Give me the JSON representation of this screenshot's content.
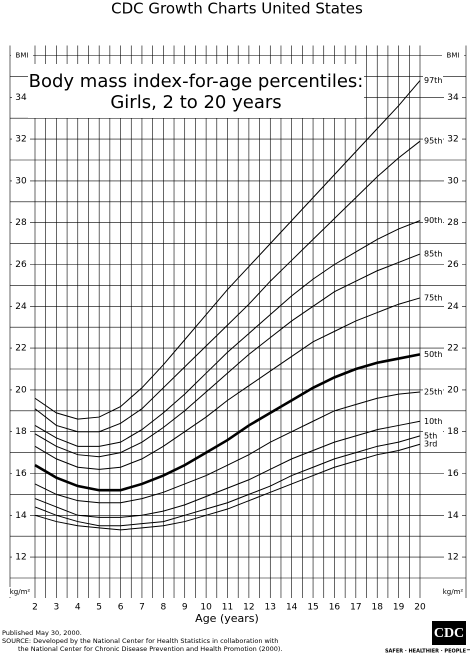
{
  "chart_data": {
    "type": "line",
    "title": "CDC Growth Charts United States",
    "chart_heading": [
      "Body mass index-for-age percentiles:",
      "Girls, 2 to 20 years"
    ],
    "x_label": "Age (years)",
    "y_label_top": "BMI",
    "y_label_bottom": "kg/m²",
    "x": [
      2,
      3,
      4,
      5,
      6,
      7,
      8,
      9,
      10,
      11,
      12,
      13,
      14,
      15,
      16,
      17,
      18,
      19,
      20
    ],
    "xlim": [
      2,
      20
    ],
    "xticks": [
      2,
      3,
      4,
      5,
      6,
      7,
      8,
      9,
      10,
      11,
      12,
      13,
      14,
      15,
      16,
      17,
      18,
      19,
      20
    ],
    "xgrid": [
      2,
      2.5,
      3,
      3.5,
      4,
      4.5,
      5,
      5.5,
      6,
      6.5,
      7,
      7.5,
      8,
      8.5,
      9,
      9.5,
      10,
      10.5,
      11,
      11.5,
      12,
      12.5,
      13,
      13.5,
      14,
      14.5,
      15,
      15.5,
      16,
      16.5,
      17,
      17.5,
      18,
      18.5,
      19,
      19.5,
      20
    ],
    "ylim": [
      11,
      36
    ],
    "yticks": [
      12,
      14,
      16,
      18,
      20,
      22,
      24,
      26,
      28,
      30,
      32,
      34
    ],
    "ygrid": [
      11,
      12,
      13,
      14,
      15,
      16,
      17,
      18,
      19,
      20,
      21,
      22,
      23,
      24,
      25,
      26,
      27,
      28,
      29,
      30,
      31,
      32,
      33,
      34,
      35,
      36
    ],
    "grid": true,
    "series": [
      {
        "name": "97th",
        "color": "#000000",
        "line_width": 1,
        "values": [
          19.6,
          18.9,
          18.6,
          18.7,
          19.2,
          20.1,
          21.2,
          22.4,
          23.6,
          24.8,
          25.9,
          27.0,
          28.1,
          29.2,
          30.3,
          31.4,
          32.5,
          33.6,
          34.8
        ]
      },
      {
        "name": "95th",
        "color": "#000000",
        "line_width": 1,
        "values": [
          19.1,
          18.3,
          18.0,
          18.0,
          18.4,
          19.1,
          20.1,
          21.1,
          22.1,
          23.1,
          24.1,
          25.2,
          26.2,
          27.2,
          28.2,
          29.2,
          30.2,
          31.1,
          31.9
        ]
      },
      {
        "name": "90th",
        "color": "#000000",
        "line_width": 1,
        "values": [
          18.3,
          17.7,
          17.3,
          17.3,
          17.5,
          18.1,
          18.9,
          19.8,
          20.8,
          21.8,
          22.7,
          23.6,
          24.5,
          25.3,
          26.0,
          26.6,
          27.2,
          27.7,
          28.1
        ]
      },
      {
        "name": "85th",
        "color": "#000000",
        "line_width": 1,
        "values": [
          17.9,
          17.3,
          16.9,
          16.8,
          17.0,
          17.5,
          18.2,
          19.0,
          19.9,
          20.8,
          21.7,
          22.5,
          23.3,
          24.0,
          24.7,
          25.2,
          25.7,
          26.1,
          26.5
        ]
      },
      {
        "name": "75th",
        "color": "#000000",
        "line_width": 1,
        "values": [
          17.3,
          16.7,
          16.3,
          16.2,
          16.3,
          16.7,
          17.3,
          18.0,
          18.7,
          19.5,
          20.2,
          20.9,
          21.6,
          22.3,
          22.8,
          23.3,
          23.7,
          24.1,
          24.4
        ]
      },
      {
        "name": "50th",
        "color": "#000000",
        "line_width": 2.6,
        "values": [
          16.4,
          15.8,
          15.4,
          15.2,
          15.2,
          15.5,
          15.9,
          16.4,
          17.0,
          17.6,
          18.3,
          18.9,
          19.5,
          20.1,
          20.6,
          21.0,
          21.3,
          21.5,
          21.7
        ]
      },
      {
        "name": "25th",
        "color": "#000000",
        "line_width": 1,
        "values": [
          15.5,
          15.0,
          14.7,
          14.6,
          14.6,
          14.8,
          15.1,
          15.5,
          15.9,
          16.4,
          16.9,
          17.5,
          18.0,
          18.5,
          19.0,
          19.3,
          19.6,
          19.8,
          19.9
        ]
      },
      {
        "name": "10th",
        "color": "#000000",
        "line_width": 1,
        "values": [
          14.8,
          14.4,
          14.0,
          13.9,
          13.9,
          14.0,
          14.2,
          14.5,
          14.9,
          15.3,
          15.7,
          16.2,
          16.7,
          17.1,
          17.5,
          17.8,
          18.1,
          18.3,
          18.5
        ]
      },
      {
        "name": "5th",
        "color": "#000000",
        "line_width": 1,
        "values": [
          14.4,
          14.0,
          13.7,
          13.5,
          13.5,
          13.6,
          13.7,
          14.0,
          14.3,
          14.6,
          15.0,
          15.4,
          15.9,
          16.3,
          16.7,
          17.0,
          17.3,
          17.5,
          17.8
        ]
      },
      {
        "name": "3rd",
        "color": "#000000",
        "line_width": 1,
        "values": [
          14.0,
          13.7,
          13.5,
          13.4,
          13.3,
          13.4,
          13.5,
          13.7,
          14.0,
          14.3,
          14.7,
          15.1,
          15.5,
          15.9,
          16.3,
          16.6,
          16.9,
          17.1,
          17.4
        ]
      }
    ]
  },
  "footer": {
    "lines": [
      "Published May 30, 2000.",
      "SOURCE: Developed by the National Center for Health Statistics in collaboration with",
      "the National Center for Chronic Disease Prevention and Health Promotion (2000)."
    ],
    "logo": "CDC",
    "tagline": "SAFER · HEALTHIER · PEOPLE™"
  }
}
